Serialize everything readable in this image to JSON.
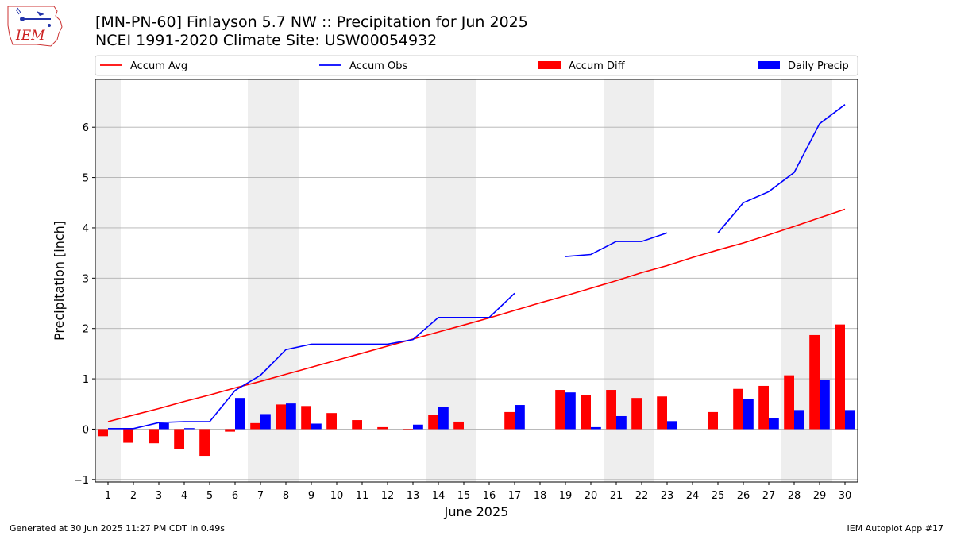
{
  "header": {
    "title_line1": "[MN-PN-60] Finlayson 5.7 NW :: Precipitation for Jun 2025",
    "title_line2": "NCEI 1991-2020 Climate Site: USW00054932",
    "logo_text": "IEM"
  },
  "footer": {
    "left": "Generated at 30 Jun 2025 11:27 PM CDT in 0.49s",
    "right": "IEM Autoplot App #17"
  },
  "colors": {
    "accum_avg": "#ff0000",
    "accum_obs": "#0000ff",
    "accum_diff": "#ff0000",
    "daily_precip": "#0000ff",
    "weekend_shade": "#eeeeee",
    "grid": "#b0b0b0"
  },
  "chart_data": {
    "type": "bar",
    "xlabel": "June 2025",
    "ylabel": "Precipitation [inch]",
    "xlim": [
      0.5,
      30.5
    ],
    "ylim": [
      -1.05,
      6.95
    ],
    "yticks": [
      -1,
      0,
      1,
      2,
      3,
      4,
      5,
      6
    ],
    "grid": "horizontal",
    "legend_placement": "top",
    "days": [
      1,
      2,
      3,
      4,
      5,
      6,
      7,
      8,
      9,
      10,
      11,
      12,
      13,
      14,
      15,
      16,
      17,
      18,
      19,
      20,
      21,
      22,
      23,
      24,
      25,
      26,
      27,
      28,
      29,
      30
    ],
    "weekend_bands": [
      [
        0.5,
        1.5
      ],
      [
        6.5,
        8.5
      ],
      [
        13.5,
        15.5
      ],
      [
        20.5,
        22.5
      ],
      [
        27.5,
        29.5
      ]
    ],
    "legend": [
      "Accum Avg",
      "Accum Obs",
      "Accum Diff",
      "Daily Precip"
    ],
    "series": [
      {
        "name": "Accum Avg",
        "kind": "line",
        "values": [
          0.15,
          0.28,
          0.41,
          0.55,
          0.68,
          0.82,
          0.95,
          1.09,
          1.23,
          1.37,
          1.51,
          1.65,
          1.79,
          1.93,
          2.07,
          2.21,
          2.36,
          2.51,
          2.65,
          2.8,
          2.95,
          3.11,
          3.25,
          3.41,
          3.56,
          3.7,
          3.86,
          4.03,
          4.2,
          4.37
        ]
      },
      {
        "name": "Accum Obs",
        "kind": "line",
        "values": [
          0.01,
          0.01,
          0.13,
          0.15,
          0.15,
          0.77,
          1.07,
          1.58,
          1.69,
          1.69,
          1.69,
          1.69,
          1.78,
          2.22,
          2.22,
          2.22,
          2.7,
          null,
          3.43,
          3.47,
          3.73,
          3.73,
          3.9,
          null,
          3.9,
          4.5,
          4.72,
          5.1,
          6.07,
          6.45
        ]
      },
      {
        "name": "Accum Diff",
        "kind": "bar",
        "values": [
          -0.14,
          -0.27,
          -0.28,
          -0.4,
          -0.53,
          -0.05,
          0.12,
          0.49,
          0.46,
          0.32,
          0.18,
          0.04,
          -0.01,
          0.29,
          0.15,
          null,
          0.34,
          null,
          0.78,
          0.67,
          0.78,
          0.62,
          0.65,
          null,
          0.34,
          0.8,
          0.86,
          1.07,
          1.87,
          2.08
        ]
      },
      {
        "name": "Daily Precip",
        "kind": "bar",
        "values": [
          0.01,
          0,
          0.12,
          0.02,
          0,
          0.62,
          0.3,
          0.51,
          0.11,
          0,
          0,
          0,
          0.09,
          0.44,
          0,
          0,
          0.48,
          null,
          0.73,
          0.04,
          0.26,
          0,
          0.16,
          null,
          0,
          0.6,
          0.22,
          0.38,
          0.97,
          0.38
        ]
      }
    ]
  }
}
